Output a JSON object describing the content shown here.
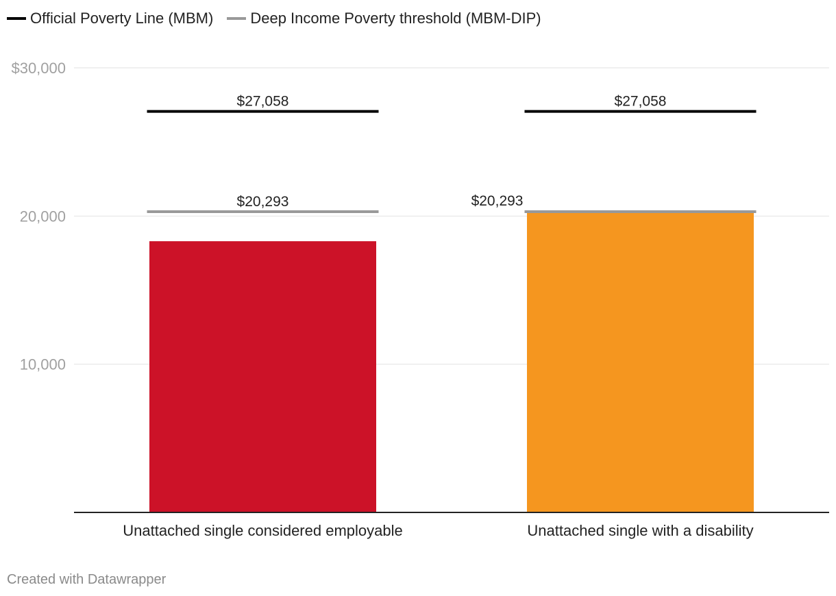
{
  "legend": {
    "official_label": "Official Poverty Line (MBM)",
    "official_color": "#000000",
    "deep_label": "Deep Income Poverty threshold (MBM-DIP)",
    "deep_color": "#999999"
  },
  "footer": {
    "credit": "Created with Datawrapper"
  },
  "chart_data": {
    "type": "bar",
    "categories": [
      "Unattached single considered employable",
      "Unattached single with a disability"
    ],
    "values": [
      18300,
      20300
    ],
    "bar_colors": [
      "#cc1228",
      "#f5961f"
    ],
    "ylim": [
      0,
      30000
    ],
    "yticks": [
      {
        "value": 30000,
        "label": "$30,000"
      },
      {
        "value": 20000,
        "label": "20,000"
      },
      {
        "value": 10000,
        "label": "10,000"
      }
    ],
    "grid": true,
    "reference_lines": [
      {
        "series": "Official Poverty Line (MBM)",
        "values": [
          27058,
          27058
        ],
        "labels": [
          "$27,058",
          "$27,058"
        ],
        "color": "#000000"
      },
      {
        "series": "Deep Income Poverty threshold (MBM-DIP)",
        "values": [
          20293,
          20293
        ],
        "labels": [
          "$20,293",
          "$20,293"
        ],
        "color": "#999999"
      }
    ]
  }
}
